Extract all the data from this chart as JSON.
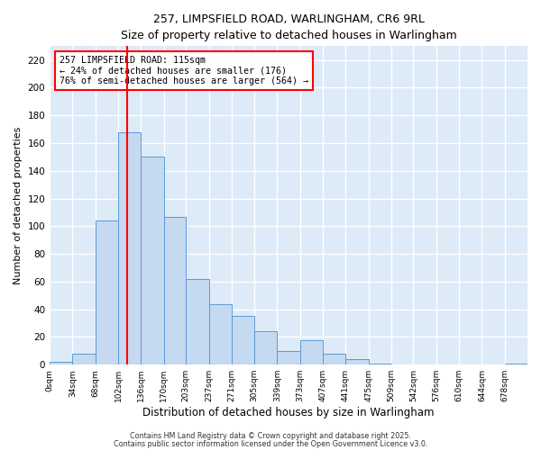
{
  "title": "257, LIMPSFIELD ROAD, WARLINGHAM, CR6 9RL",
  "subtitle": "Size of property relative to detached houses in Warlingham",
  "xlabel": "Distribution of detached houses by size in Warlingham",
  "ylabel": "Number of detached properties",
  "bar_color": "#c5d9f0",
  "bar_edge_color": "#5b9bd5",
  "bg_color": "#ddeaf7",
  "grid_color": "#ffffff",
  "vline_x": 115,
  "vline_color": "red",
  "annotation_title": "257 LIMPSFIELD ROAD: 115sqm",
  "annotation_line1": "← 24% of detached houses are smaller (176)",
  "annotation_line2": "76% of semi-detached houses are larger (564) →",
  "bin_edges": [
    0,
    34,
    68,
    102,
    136,
    170,
    203,
    237,
    271,
    305,
    339,
    373,
    407,
    441,
    475,
    509,
    542,
    576,
    610,
    644,
    678,
    712
  ],
  "bin_counts": [
    2,
    8,
    104,
    168,
    150,
    107,
    62,
    44,
    35,
    24,
    10,
    18,
    8,
    4,
    1,
    0,
    0,
    0,
    0,
    0,
    1
  ],
  "ylim": [
    0,
    230
  ],
  "yticks": [
    0,
    20,
    40,
    60,
    80,
    100,
    120,
    140,
    160,
    180,
    200,
    220
  ],
  "footer_line1": "Contains HM Land Registry data © Crown copyright and database right 2025.",
  "footer_line2": "Contains public sector information licensed under the Open Government Licence v3.0."
}
